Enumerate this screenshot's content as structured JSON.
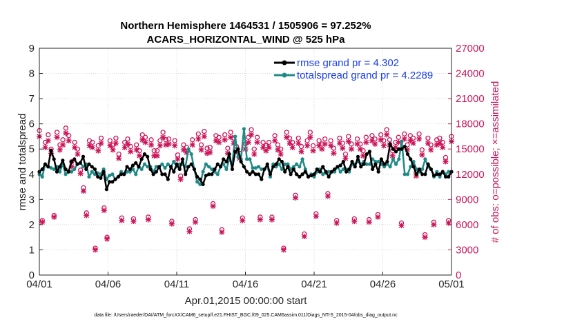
{
  "chart_data": {
    "type": "line",
    "title": "Northern Hemisphere 1464531 / 1505906 = 97.252%",
    "subtitle": "ACARS_HORIZONTAL_WIND @ 525 hPa",
    "xlabel": "Apr.01,2015 00:00:00 start",
    "ylabel_left": "rmse and totalspread",
    "ylabel_right": "# of obs: o=possible; ×=assimilated",
    "footnote": "data file: /Users/raeder/DAI/ATM_forcXX/CAM6_setup/f.e21.FHIST_BGC.f09_025.CAM6assim.011/Diags_NTrS_2015-04/obs_diag_output.nc",
    "xlim": [
      0,
      30
    ],
    "ylim_left": [
      0,
      9
    ],
    "ylim_right": [
      0,
      27000
    ],
    "x_ticks": [
      0,
      5,
      10,
      15,
      20,
      25,
      30
    ],
    "x_tick_labels": [
      "04/01",
      "04/06",
      "04/11",
      "04/16",
      "04/21",
      "04/26",
      "05/01"
    ],
    "y_left_ticks": [
      "0",
      "1",
      "2",
      "3",
      "4",
      "5",
      "6",
      "7",
      "8",
      "9"
    ],
    "y_right_ticks": [
      "0",
      "3000",
      "6000",
      "9000",
      "12000",
      "15000",
      "18000",
      "21000",
      "24000",
      "27000"
    ],
    "colors": {
      "rmse": "#000000",
      "spread": "#1f8a87",
      "obs": "#cc1559",
      "legend_text": "#1a3ff0"
    },
    "legend_position": "top-right",
    "series": [
      {
        "name": "rmse grand pr = 4.302",
        "axis": "left",
        "values": [
          4.1,
          4.2,
          4.4,
          4.3,
          4.95,
          4.6,
          4.1,
          4.3,
          4.55,
          4.2,
          4.1,
          4.5,
          4.6,
          4.4,
          4.45,
          4.7,
          4.2,
          4.4,
          4.3,
          4.2,
          3.9,
          3.85,
          4.1,
          3.4,
          3.7,
          3.7,
          3.8,
          3.9,
          4.0,
          4.0,
          4.3,
          4.2,
          4.35,
          4.45,
          4.3,
          4.6,
          4.8,
          4.7,
          4.2,
          4.0,
          4.1,
          4.3,
          4.0,
          4.0,
          3.8,
          4.3,
          4.1,
          4.4,
          4.2,
          4.6,
          4.0,
          4.3,
          4.4,
          4.2,
          3.9,
          3.8,
          3.6,
          3.95,
          4.0,
          4.0,
          4.2,
          4.4,
          4.3,
          4.6,
          4.5,
          4.8,
          4.2,
          4.9,
          5.0,
          4.5,
          4.3,
          4.1,
          4.0,
          4.1,
          4.0,
          4.0,
          3.8,
          4.2,
          4.4,
          4.0,
          4.3,
          4.4,
          4.6,
          4.5,
          4.1,
          4.3,
          4.0,
          4.2,
          4.0,
          3.9,
          4.0,
          4.1,
          3.9,
          3.95,
          4.0,
          4.2,
          4.1,
          4.3,
          4.1,
          3.9,
          4.1,
          4.2,
          4.3,
          4.35,
          4.5,
          4.1,
          4.2,
          4.5,
          4.3,
          4.7,
          4.3,
          4.4,
          4.8,
          4.9,
          4.2,
          4.4,
          4.1,
          4.6,
          4.4,
          4.5,
          5.2,
          5.0,
          4.9,
          5.0,
          5.0,
          5.1,
          4.8,
          4.6,
          4.3,
          4.0,
          4.2,
          4.0,
          4.0,
          4.4,
          4.2,
          3.95,
          4.0,
          4.0,
          4.1,
          3.9,
          3.9,
          4.1
        ]
      },
      {
        "name": "totalspread grand pr = 4.2289",
        "axis": "left",
        "values": [
          4.0,
          3.9,
          4.4,
          4.3,
          4.25,
          4.2,
          4.3,
          4.1,
          4.4,
          4.0,
          4.1,
          4.1,
          4.2,
          4.4,
          4.45,
          4.3,
          4.4,
          3.9,
          4.1,
          4.0,
          4.05,
          4.0,
          4.2,
          3.8,
          3.95,
          4.0,
          3.8,
          3.9,
          4.1,
          4.0,
          4.1,
          4.1,
          4.2,
          4.0,
          4.3,
          4.2,
          4.4,
          4.3,
          4.3,
          4.1,
          4.3,
          4.3,
          4.4,
          4.25,
          4.4,
          4.3,
          4.5,
          4.3,
          4.4,
          4.4,
          4.3,
          5.0,
          4.8,
          4.2,
          3.7,
          3.6,
          4.1,
          4.4,
          4.3,
          4.2,
          4.1,
          4.0,
          4.3,
          4.4,
          4.2,
          4.6,
          4.4,
          5.5,
          4.7,
          4.6,
          5.8,
          4.6,
          4.6,
          4.25,
          4.25,
          4.3,
          4.2,
          4.2,
          4.3,
          3.9,
          4.4,
          4.3,
          4.4,
          4.2,
          4.4,
          4.4,
          4.2,
          4.3,
          4.4,
          4.3,
          4.6,
          4.2,
          3.9,
          4.0,
          3.9,
          4.1,
          4.2,
          4.0,
          4.05,
          4.1,
          4.1,
          4.1,
          4.3,
          4.1,
          4.2,
          4.2,
          4.1,
          4.4,
          4.4,
          4.5,
          4.4,
          4.5,
          4.4,
          4.4,
          4.6,
          4.5,
          4.5,
          4.4,
          4.3,
          4.4,
          4.3,
          4.6,
          4.4,
          4.6,
          5.3,
          4.0,
          4.0,
          4.3,
          4.5,
          4.2,
          4.1,
          4.2,
          4.6,
          4.3,
          4.2,
          3.9,
          4.1,
          3.9,
          4.1,
          4.0,
          4.1,
          4.1
        ]
      },
      {
        "name": "possible",
        "axis": "right",
        "marker": "circle",
        "values": [
          17200,
          6500,
          15800,
          16700,
          15000,
          7100,
          17000,
          15500,
          16100,
          17500,
          16600,
          13500,
          15800,
          15000,
          12500,
          10400,
          7400,
          16000,
          15800,
          3200,
          15400,
          16300,
          8000,
          4500,
          16000,
          15500,
          16300,
          14400,
          6800,
          15800,
          16200,
          15300,
          6700,
          15500,
          14800,
          16700,
          16400,
          6900,
          16100,
          14800,
          14800,
          16000,
          17000,
          16100,
          16200,
          6400,
          16000,
          14300,
          11800,
          15500,
          15200,
          5500,
          16100,
          6600,
          16800,
          15500,
          17100,
          15100,
          15200,
          8500,
          16600,
          16400,
          5400,
          16700,
          15100,
          17000,
          16300,
          15300,
          14500,
          6800,
          15600,
          16400,
          17300,
          15000,
          16400,
          6900,
          15800,
          15400,
          15800,
          6900,
          16600,
          15500,
          15000,
          3200,
          17000,
          16300,
          15800,
          9500,
          16300,
          15300,
          4900,
          16000,
          17000,
          15400,
          7300,
          16000,
          15600,
          16200,
          9700,
          16000,
          15100,
          6500,
          16300,
          15700,
          14400,
          16500,
          15600,
          6700,
          16200,
          15600,
          14800,
          16400,
          6600,
          16600,
          16200,
          7200,
          16700,
          16000,
          17300,
          16100,
          14800,
          15800,
          16400,
          6200,
          16800,
          15500,
          16600,
          16300,
          12200,
          16800,
          14900,
          4800,
          16300,
          15500,
          6300,
          16100,
          16300,
          15800,
          14000,
          6500,
          16500
        ]
      },
      {
        "name": "assimilated",
        "axis": "right",
        "marker": "x",
        "values": [
          16500,
          6300,
          15200,
          16000,
          14500,
          6900,
          16400,
          14900,
          15500,
          16900,
          16000,
          12900,
          15200,
          14400,
          12100,
          10000,
          7100,
          15400,
          15200,
          3000,
          14800,
          15700,
          7700,
          4300,
          15400,
          14900,
          15700,
          13900,
          6500,
          15200,
          15600,
          14700,
          6400,
          14900,
          14200,
          16100,
          15800,
          6600,
          15500,
          14200,
          14200,
          15400,
          16400,
          15500,
          15600,
          6100,
          15400,
          13800,
          11400,
          14900,
          14600,
          5200,
          15500,
          6300,
          16200,
          14900,
          16500,
          14500,
          14600,
          8200,
          16000,
          15800,
          5100,
          16100,
          14500,
          16400,
          15700,
          14700,
          13900,
          6500,
          15000,
          15800,
          16700,
          14400,
          15800,
          6600,
          15200,
          14800,
          15200,
          6600,
          16000,
          14900,
          14400,
          3000,
          16400,
          15700,
          15200,
          9200,
          15700,
          14700,
          4600,
          15400,
          16400,
          14800,
          7000,
          15400,
          15000,
          15600,
          9400,
          15400,
          14500,
          6200,
          15700,
          15100,
          13900,
          15900,
          15000,
          6400,
          15600,
          15000,
          14200,
          15800,
          6300,
          16000,
          15600,
          6900,
          16100,
          15400,
          16700,
          15500,
          14200,
          15200,
          15800,
          5900,
          16200,
          14900,
          16000,
          15700,
          11800,
          16200,
          14300,
          4500,
          15700,
          14900,
          6000,
          15500,
          15700,
          15200,
          13500,
          6200,
          15900
        ]
      }
    ]
  }
}
